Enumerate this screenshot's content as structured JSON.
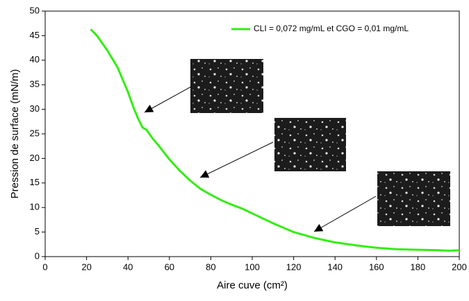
{
  "chart_data": {
    "type": "line",
    "xlabel": "Aire cuve (cm²)",
    "ylabel": "Pression de surface (mN/m)",
    "xlim": [
      0,
      200
    ],
    "xticks": [
      0,
      20,
      40,
      60,
      80,
      100,
      120,
      140,
      160,
      180,
      200
    ],
    "ylim": [
      0,
      50
    ],
    "yticks": [
      0,
      5,
      10,
      15,
      20,
      25,
      30,
      35,
      40,
      45,
      50
    ],
    "legend": "upper right",
    "series": [
      {
        "name": "CLI = 0,072 mg/mL et CGO = 0,01 mg/mL",
        "color": "#33ee11",
        "x": [
          22,
          25,
          30,
          35,
          40,
          43,
          45,
          47,
          49,
          52,
          55,
          60,
          65,
          70,
          75,
          80,
          85,
          90,
          95,
          100,
          110,
          120,
          130,
          140,
          150,
          160,
          170,
          180,
          190,
          195,
          200
        ],
        "values": [
          46.3,
          45,
          42,
          38.5,
          33.5,
          30,
          28,
          26.3,
          25.8,
          24,
          22.5,
          19.8,
          17.5,
          15.5,
          13.8,
          12.6,
          11.5,
          10.6,
          9.8,
          8.8,
          6.8,
          5,
          3.8,
          2.9,
          2.3,
          1.8,
          1.5,
          1.4,
          1.3,
          1.2,
          1.3
        ]
      }
    ]
  }
}
